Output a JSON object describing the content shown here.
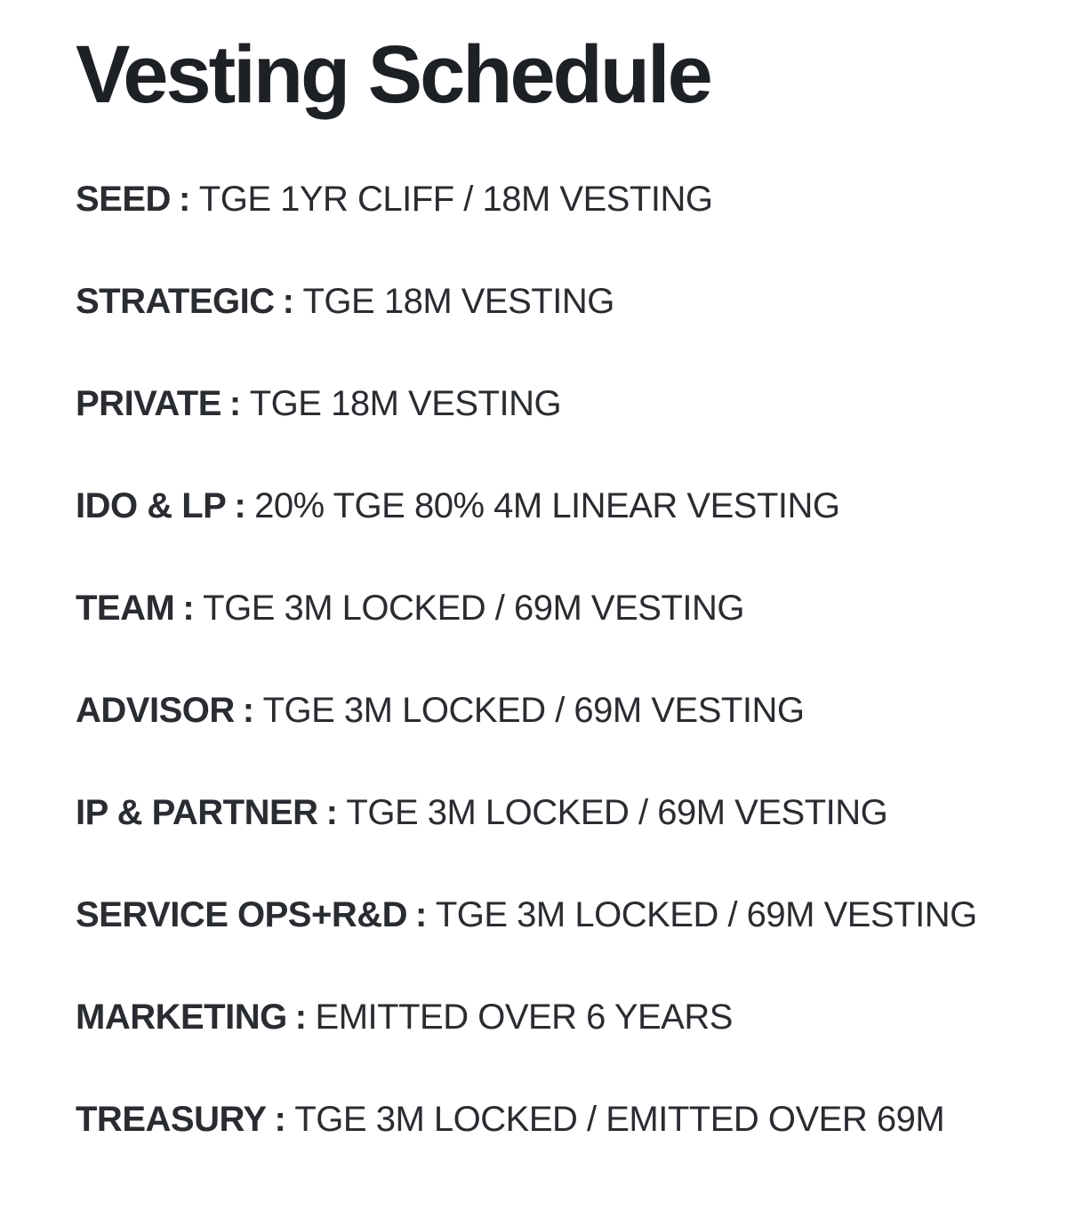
{
  "colors": {
    "background": "#ffffff",
    "title_text": "#1d2025",
    "body_text": "#292c31"
  },
  "page": {
    "title": "Vesting Schedule"
  },
  "schedule": {
    "separator": ":",
    "items": [
      {
        "category": "SEED",
        "terms": "TGE 1YR CLIFF / 18M VESTING"
      },
      {
        "category": "STRATEGIC",
        "terms": "TGE 18M VESTING"
      },
      {
        "category": "PRIVATE",
        "terms": "TGE 18M VESTING"
      },
      {
        "category": "IDO & LP",
        "terms": "20% TGE 80% 4M LINEAR VESTING"
      },
      {
        "category": "TEAM",
        "terms": "TGE 3M LOCKED / 69M VESTING"
      },
      {
        "category": "ADVISOR",
        "terms": "TGE 3M LOCKED / 69M VESTING"
      },
      {
        "category": "IP & PARTNER",
        "terms": "TGE 3M LOCKED / 69M VESTING"
      },
      {
        "category": "SERVICE OPS+R&D",
        "terms": "TGE 3M LOCKED / 69M VESTING"
      },
      {
        "category": "MARKETING",
        "terms": "EMITTED OVER 6 YEARS"
      },
      {
        "category": "TREASURY",
        "terms": "TGE 3M LOCKED / EMITTED OVER 69M"
      }
    ]
  }
}
